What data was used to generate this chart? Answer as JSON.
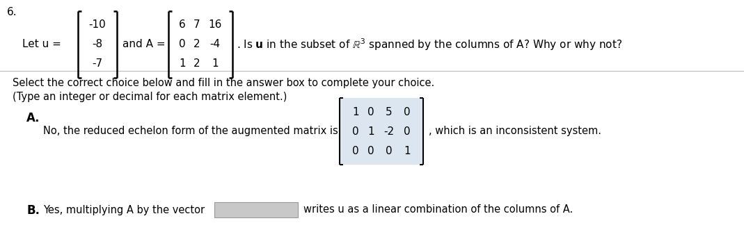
{
  "problem_number": "6.",
  "u_vector": [
    "-10",
    "-8",
    "-7"
  ],
  "A_matrix": [
    [
      "6",
      "7",
      "16"
    ],
    [
      "0",
      "2",
      "-4"
    ],
    [
      "1",
      "2",
      "1"
    ]
  ],
  "rref_matrix": [
    [
      "1",
      "0",
      "5",
      "0"
    ],
    [
      "0",
      "1",
      "-2",
      "0"
    ],
    [
      "0",
      "0",
      "0",
      "1"
    ]
  ],
  "instruction_line1": "Select the correct choice below and fill in the answer box to complete your choice.",
  "instruction_line2": "(Type an integer or decimal for each matrix element.)",
  "choice_A_text": "No, the reduced echelon form of the augmented matrix is",
  "choice_A_suffix": ", which is an inconsistent system.",
  "choice_B_text1": "Yes, multiplying A by the vector",
  "choice_B_text2": "writes u as a linear combination of the columns of A.",
  "bg_color": "#ffffff",
  "text_color": "#000000",
  "matrix_bg": "#dce6f1",
  "separator_color": "#bbbbbb",
  "fontsize_main": 11,
  "fontsize_small": 10.5
}
